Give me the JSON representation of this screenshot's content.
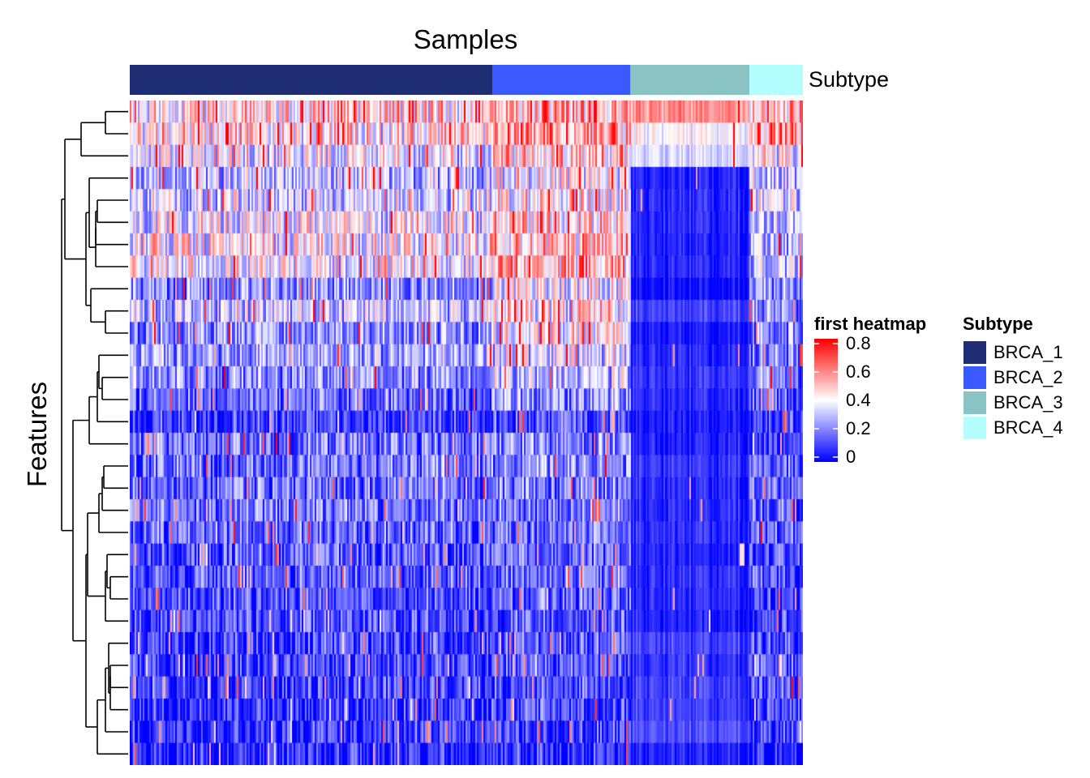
{
  "chart_data": {
    "type": "heatmap",
    "column_title": "Samples",
    "row_title": "Features",
    "annotation": {
      "name": "Subtype",
      "groups": [
        {
          "label": "BRCA_1",
          "color": "#1F2D75",
          "fraction": 0.538
        },
        {
          "label": "BRCA_2",
          "color": "#3A59FF",
          "fraction": 0.205
        },
        {
          "label": "BRCA_3",
          "color": "#89C3C3",
          "fraction": 0.177
        },
        {
          "label": "BRCA_4",
          "color": "#B3FFFF",
          "fraction": 0.08
        }
      ]
    },
    "color_scale": {
      "title": "first heatmap",
      "min": 0,
      "max": 0.8,
      "ticks": [
        "0.8",
        "0.6",
        "0.4",
        "0.2",
        "0"
      ],
      "colors": [
        "#0000FF",
        "#FFFFFF",
        "#FF0000"
      ]
    },
    "n_rows": 30,
    "n_cols": 415,
    "row_group_means": [
      [
        0.46,
        0.55,
        0.58,
        0.47
      ],
      [
        0.44,
        0.52,
        0.4,
        0.52
      ],
      [
        0.36,
        0.48,
        0.34,
        0.42
      ],
      [
        0.3,
        0.4,
        0.05,
        0.3
      ],
      [
        0.34,
        0.42,
        0.06,
        0.32
      ],
      [
        0.38,
        0.44,
        0.06,
        0.28
      ],
      [
        0.4,
        0.5,
        0.05,
        0.3
      ],
      [
        0.4,
        0.52,
        0.06,
        0.28
      ],
      [
        0.22,
        0.4,
        0.02,
        0.2
      ],
      [
        0.3,
        0.42,
        0.1,
        0.22
      ],
      [
        0.22,
        0.4,
        0.04,
        0.2
      ],
      [
        0.25,
        0.34,
        0.06,
        0.18
      ],
      [
        0.22,
        0.3,
        0.08,
        0.2
      ],
      [
        0.16,
        0.24,
        0.06,
        0.16
      ],
      [
        0.1,
        0.14,
        0.04,
        0.08
      ],
      [
        0.18,
        0.22,
        0.05,
        0.06
      ],
      [
        0.18,
        0.22,
        0.08,
        0.16
      ],
      [
        0.16,
        0.2,
        0.06,
        0.14
      ],
      [
        0.17,
        0.2,
        0.06,
        0.15
      ],
      [
        0.15,
        0.18,
        0.07,
        0.14
      ],
      [
        0.14,
        0.16,
        0.05,
        0.12
      ],
      [
        0.15,
        0.17,
        0.07,
        0.12
      ],
      [
        0.12,
        0.16,
        0.06,
        0.1
      ],
      [
        0.11,
        0.14,
        0.05,
        0.1
      ],
      [
        0.1,
        0.13,
        0.1,
        0.12
      ],
      [
        0.1,
        0.12,
        0.08,
        0.12
      ],
      [
        0.1,
        0.12,
        0.1,
        0.12
      ],
      [
        0.08,
        0.11,
        0.1,
        0.1
      ],
      [
        0.08,
        0.1,
        0.12,
        0.1
      ],
      [
        0.06,
        0.08,
        0.05,
        0.06
      ]
    ],
    "row_dendrogram": {
      "type": "hierarchical",
      "merge_order_leaves": 30
    }
  }
}
